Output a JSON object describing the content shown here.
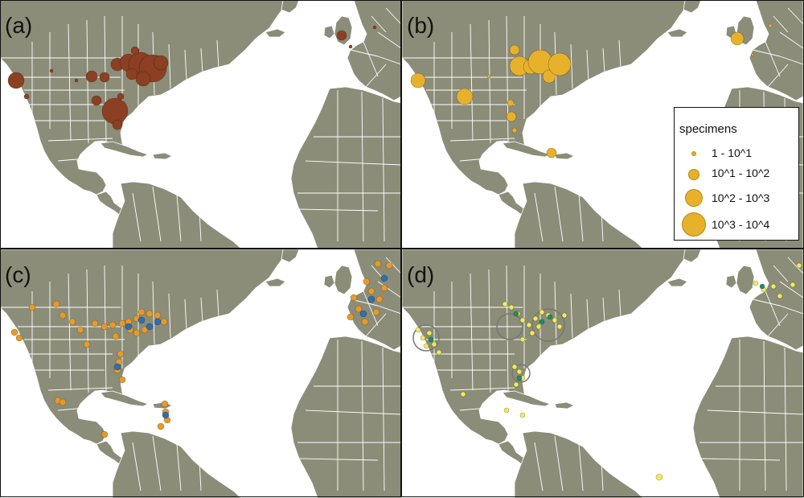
{
  "panels": [
    {
      "id": "a",
      "label": "(a)"
    },
    {
      "id": "b",
      "label": "(b)"
    },
    {
      "id": "c",
      "label": "(c)"
    },
    {
      "id": "d",
      "label": "(d)"
    }
  ],
  "legend": {
    "title": "specimens",
    "items": [
      "1 - 10^1",
      "10^1 - 10^2",
      "10^2 - 10^3",
      "10^3 - 10^4"
    ]
  },
  "colors": {
    "land": "#8b8d78",
    "borders": "#ffffff",
    "ocean": "#ffffff",
    "panel_a_markers": "#8c3f22",
    "panel_b_markers": "#e8b12b",
    "panel_c_orange": "#e79a2a",
    "panel_c_blue": "#2f6fae",
    "panel_d_yellow": "#f2ea5c",
    "panel_d_green": "#1f8f5f"
  }
}
